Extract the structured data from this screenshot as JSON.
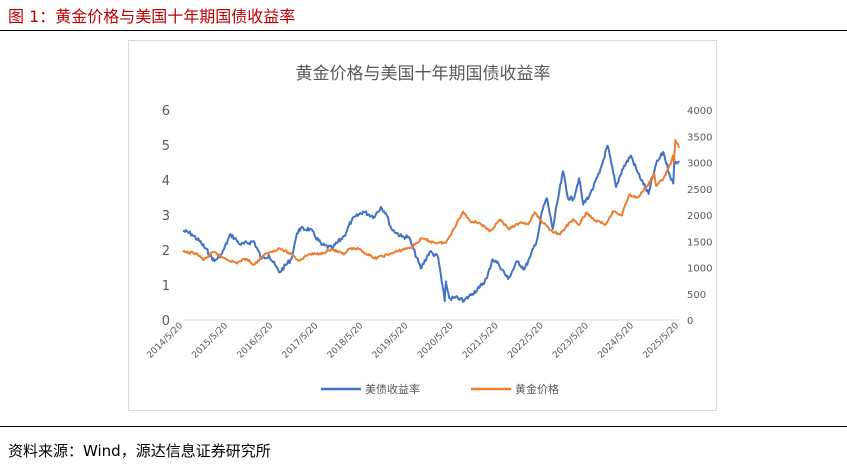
{
  "header": {
    "figure_title": "图 1：黄金价格与美国十年期国债收益率"
  },
  "footer": {
    "source": "资料来源：Wind，源达信息证券研究所"
  },
  "colors": {
    "title_red": "#c00000",
    "treasury_blue": "#4472c4",
    "gold_orange": "#ed7d31",
    "axis_text": "#595959",
    "grid": "#d9d9d9"
  },
  "chart_data": {
    "type": "line",
    "title": "黄金价格与美国十年期国债收益率",
    "grid": false,
    "legend": "bottom",
    "y_left": {
      "ylim": [
        0,
        6
      ],
      "ticks": [
        "0",
        "1",
        "2",
        "3",
        "4",
        "5",
        "6"
      ]
    },
    "y_right": {
      "ylim": [
        0,
        4000
      ],
      "ticks": [
        "0",
        "500",
        "1000",
        "1500",
        "2000",
        "2500",
        "3000",
        "3500",
        "4000"
      ]
    },
    "x_ticks": [
      "2014/5/20",
      "2015/5/20",
      "2016/5/20",
      "2017/5/20",
      "2018/5/20",
      "2019/5/20",
      "2020/5/20",
      "2021/5/20",
      "2022/5/20",
      "2023/5/20",
      "2024/5/20",
      "2025/5/20"
    ],
    "series": [
      {
        "name": "美债收益率",
        "color": "#4472c4",
        "axis": "left",
        "x": [
          "2014-05-20",
          "2014-08-01",
          "2014-10-15",
          "2015-01-30",
          "2015-04-01",
          "2015-06-10",
          "2015-09-01",
          "2015-12-15",
          "2016-02-15",
          "2016-04-15",
          "2016-07-08",
          "2016-10-15",
          "2016-11-20",
          "2016-12-15",
          "2017-03-13",
          "2017-06-15",
          "2017-09-08",
          "2017-12-15",
          "2018-02-15",
          "2018-05-17",
          "2018-08-15",
          "2018-10-08",
          "2018-11-20",
          "2019-01-03",
          "2019-03-28",
          "2019-05-20",
          "2019-07-01",
          "2019-08-28",
          "2019-11-08",
          "2020-01-15",
          "2020-03-09",
          "2020-03-19",
          "2020-04-15",
          "2020-07-15",
          "2020-08-04",
          "2020-10-15",
          "2020-12-15",
          "2021-02-15",
          "2021-03-31",
          "2021-05-20",
          "2021-08-04",
          "2021-10-20",
          "2021-12-15",
          "2022-01-31",
          "2022-03-31",
          "2022-05-06",
          "2022-06-14",
          "2022-08-01",
          "2022-09-15",
          "2022-10-24",
          "2022-12-01",
          "2023-01-15",
          "2023-03-02",
          "2023-04-05",
          "2023-06-01",
          "2023-08-15",
          "2023-10-19",
          "2023-12-27",
          "2024-02-15",
          "2024-04-25",
          "2024-06-15",
          "2024-09-16",
          "2024-11-15",
          "2025-01-13",
          "2025-03-01",
          "2025-04-04",
          "2025-04-11",
          "2025-05-20"
        ],
        "y": [
          2.55,
          2.45,
          2.2,
          1.68,
          1.9,
          2.45,
          2.15,
          2.25,
          1.75,
          1.85,
          1.36,
          1.75,
          2.35,
          2.6,
          2.6,
          2.15,
          2.05,
          2.4,
          2.85,
          3.1,
          2.95,
          3.23,
          3.05,
          2.6,
          2.38,
          2.38,
          2.02,
          1.47,
          1.95,
          1.8,
          0.54,
          1.1,
          0.62,
          0.62,
          0.52,
          0.75,
          0.92,
          1.2,
          1.74,
          1.6,
          1.17,
          1.68,
          1.45,
          1.8,
          2.35,
          3.1,
          3.48,
          2.6,
          3.5,
          4.25,
          3.5,
          3.45,
          4.05,
          3.3,
          3.6,
          4.2,
          4.98,
          3.8,
          4.3,
          4.7,
          4.25,
          3.6,
          4.45,
          4.8,
          4.2,
          3.9,
          4.5,
          4.55
        ]
      },
      {
        "name": "黄金价格",
        "color": "#ed7d31",
        "axis": "right",
        "x": [
          "2014-05-20",
          "2014-09-01",
          "2014-11-05",
          "2015-01-22",
          "2015-04-01",
          "2015-07-24",
          "2015-10-15",
          "2015-12-17",
          "2016-03-01",
          "2016-07-06",
          "2016-10-15",
          "2016-12-15",
          "2017-03-01",
          "2017-06-01",
          "2017-09-08",
          "2017-12-12",
          "2018-01-25",
          "2018-04-15",
          "2018-08-16",
          "2018-12-15",
          "2019-03-01",
          "2019-06-20",
          "2019-09-04",
          "2019-12-15",
          "2020-03-19",
          "2020-05-20",
          "2020-08-06",
          "2020-09-30",
          "2020-12-15",
          "2021-03-08",
          "2021-06-01",
          "2021-08-10",
          "2021-11-15",
          "2022-01-15",
          "2022-03-08",
          "2022-04-15",
          "2022-07-15",
          "2022-09-28",
          "2022-11-15",
          "2023-01-15",
          "2023-02-28",
          "2023-05-04",
          "2023-06-29",
          "2023-10-05",
          "2023-12-01",
          "2024-02-14",
          "2024-03-08",
          "2024-04-12",
          "2024-06-15",
          "2024-09-15",
          "2024-10-30",
          "2024-11-14",
          "2025-01-15",
          "2025-03-15",
          "2025-04-02",
          "2025-04-09",
          "2025-04-21",
          "2025-05-20"
        ],
        "y": [
          1295,
          1270,
          1145,
          1295,
          1200,
          1085,
          1170,
          1050,
          1230,
          1365,
          1255,
          1130,
          1250,
          1265,
          1345,
          1245,
          1355,
          1345,
          1175,
          1250,
          1315,
          1395,
          1550,
          1475,
          1470,
          1735,
          2065,
          1885,
          1855,
          1685,
          1910,
          1730,
          1860,
          1820,
          2050,
          1930,
          1710,
          1625,
          1770,
          1920,
          1810,
          2050,
          1910,
          1820,
          2070,
          1990,
          2180,
          2390,
          2330,
          2580,
          2790,
          2560,
          2700,
          2980,
          3135,
          3000,
          3430,
          3280
        ]
      }
    ]
  }
}
